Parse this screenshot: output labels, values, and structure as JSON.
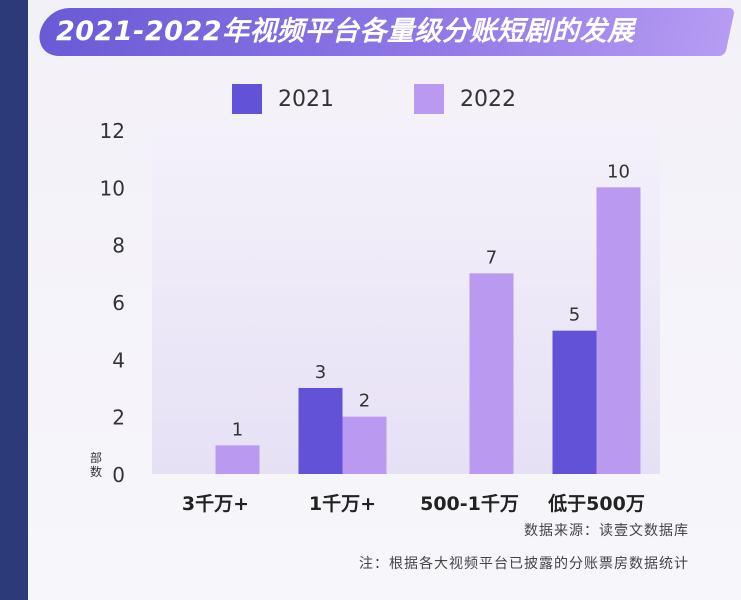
{
  "title": "2021-2022年视频平台各量级分账短剧的发展",
  "colors": {
    "series2021": "#6152d8",
    "series2022": "#b99af0",
    "plot_bg": "#e6e0f5"
  },
  "chart_data": {
    "type": "bar",
    "title": "2021-2022年视频平台各量级分账短剧的发展",
    "categories": [
      "3千万+",
      "1千万+",
      "500-1千万",
      "低于500万"
    ],
    "series": [
      {
        "name": "2021",
        "values": [
          null,
          3,
          null,
          5
        ]
      },
      {
        "name": "2022",
        "values": [
          1,
          2,
          7,
          10
        ]
      }
    ],
    "ylabel": "部数",
    "ylim": [
      0,
      12
    ],
    "yticks": [
      0,
      2,
      4,
      6,
      8,
      10,
      12
    ],
    "legend": "top",
    "grid": false
  },
  "footer": {
    "source": "数据来源：读壹文数据库",
    "note": "注：根据各大视频平台已披露的分账票房数据统计"
  }
}
